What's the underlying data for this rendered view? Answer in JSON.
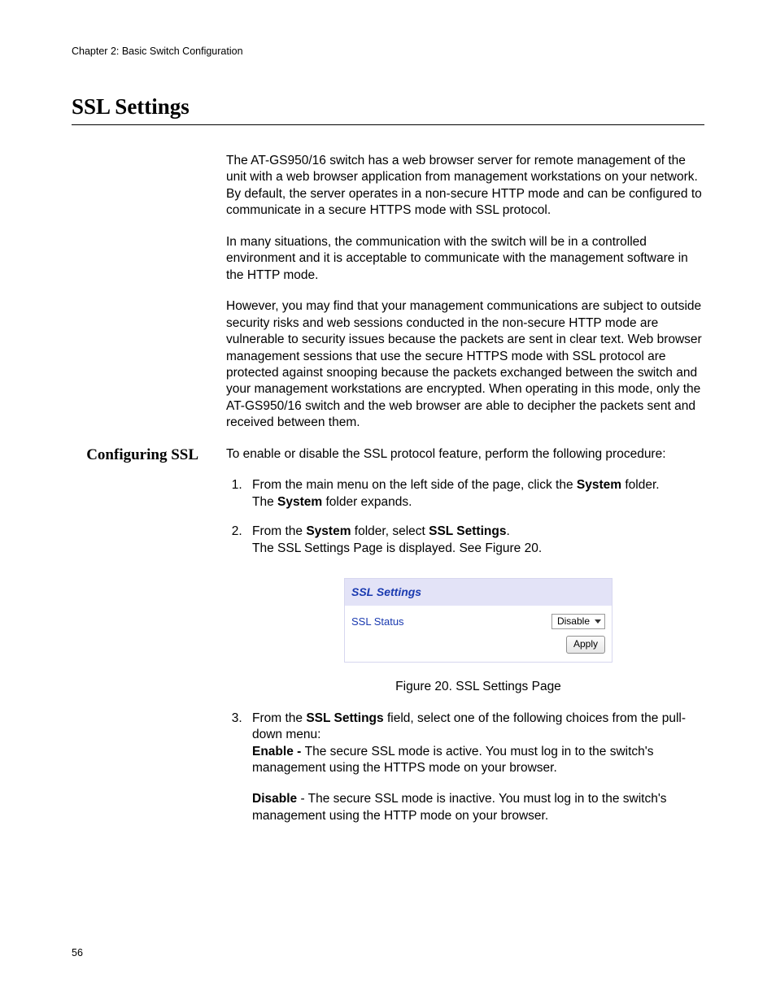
{
  "chapter_header": "Chapter 2: Basic Switch Configuration",
  "title": "SSL Settings",
  "intro": {
    "p1": "The AT-GS950/16 switch has a web browser server for remote management of the unit with a web browser application from management workstations on your network. By default, the server operates in a non-secure HTTP mode and can be configured to communicate in a secure HTTPS mode with SSL protocol.",
    "p2": "In many situations, the communication with the switch will be in a controlled environment and it is acceptable to communicate with the management software in the HTTP mode.",
    "p3": "However, you may find that your management communications are subject to outside security risks and web sessions conducted in the non-secure HTTP mode are vulnerable to security issues because the packets are sent in clear text. Web browser management sessions that use the secure HTTPS mode with SSL protocol are protected against snooping because the packets exchanged between the switch and your management workstations are encrypted. When operating in this mode, only the AT-GS950/16 switch and the web browser are able to decipher the packets sent and received between them."
  },
  "section": {
    "side_heading": "Configuring SSL",
    "lead": "To enable or disable the SSL protocol feature, perform the following procedure:",
    "step1_a": "From the main menu on the left side of the page, click the ",
    "step1_bold": "System",
    "step1_b": " folder.",
    "step1_line2a": "The ",
    "step1_line2bold": "System",
    "step1_line2b": " folder expands.",
    "step2_a": "From the ",
    "step2_bold1": "System",
    "step2_b": " folder, select ",
    "step2_bold2": "SSL Settings",
    "step2_c": ".",
    "step2_line2": "The SSL Settings Page is displayed. See Figure 20.",
    "step3_a": "From the ",
    "step3_bold": "SSL Settings",
    "step3_b": " field, select one of the following choices from the pull-down menu:",
    "enable_bold": "Enable - ",
    "enable_text": "The secure SSL mode is active. You must log in to the switch's management using the HTTPS mode on your browser.",
    "disable_bold": "Disable",
    "disable_text": " - The secure SSL mode is inactive. You must log in to the switch's management using the HTTP mode on your browser."
  },
  "figure": {
    "panel_title": "SSL Settings",
    "status_label": "SSL Status",
    "dropdown_value": "Disable",
    "apply_label": "Apply",
    "caption": "Figure 20. SSL Settings Page",
    "colors": {
      "header_bg": "#e3e3f7",
      "link_blue": "#1a3ab0",
      "border": "#d7d7ef"
    }
  },
  "page_number": "56"
}
